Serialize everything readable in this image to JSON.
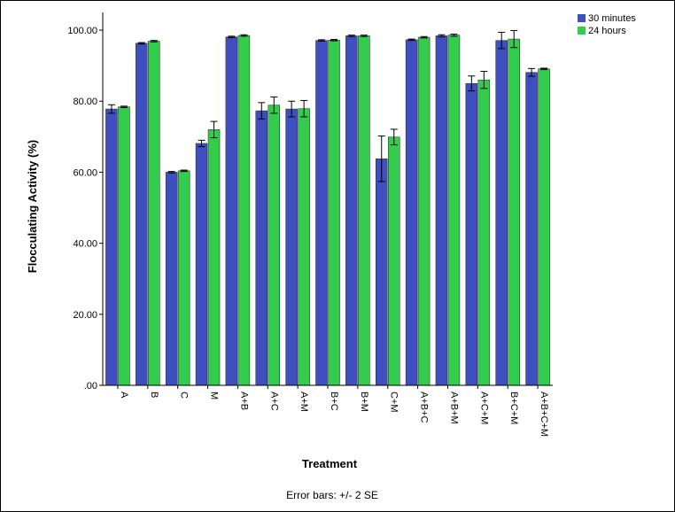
{
  "chart_data": {
    "type": "bar",
    "xlabel": "Treatment",
    "ylabel": "Flocculating Activity (%)",
    "ylim": [
      0,
      105
    ],
    "yticks": [
      0,
      20,
      40,
      60,
      80,
      100
    ],
    "ytick_labels": [
      ".00",
      "20.00",
      "40.00",
      "60.00",
      "80.00",
      "100.00"
    ],
    "categories": [
      "A",
      "B",
      "C",
      "M",
      "A+B",
      "A+C",
      "A+M",
      "B+C",
      "B+M",
      "C+M",
      "A+B+C",
      "A+B+M",
      "A+C+M",
      "B+C+M",
      "A+B+C+M"
    ],
    "series": [
      {
        "name": "30 minutes",
        "color": "#3f4fbf",
        "values": [
          77.8,
          96.3,
          60.0,
          68.1,
          98.1,
          77.3,
          77.8,
          97.1,
          98.4,
          63.8,
          97.3,
          98.4,
          85.0,
          97.1,
          88.1
        ],
        "errors": [
          1.2,
          0.2,
          0.2,
          0.9,
          0.2,
          2.3,
          2.2,
          0.2,
          0.2,
          6.4,
          0.2,
          0.3,
          2.1,
          2.3,
          1.1
        ]
      },
      {
        "name": "24 hours",
        "color": "#33cc4c",
        "values": [
          78.4,
          96.9,
          60.4,
          72.0,
          98.5,
          78.9,
          77.9,
          97.2,
          98.4,
          69.9,
          98.0,
          98.6,
          86.0,
          97.5,
          89.1
        ],
        "errors": [
          0.2,
          0.2,
          0.2,
          2.3,
          0.2,
          2.3,
          2.3,
          0.2,
          0.2,
          2.2,
          0.2,
          0.3,
          2.4,
          2.4,
          0.2
        ]
      }
    ],
    "legend_position": "top-right",
    "grid": false,
    "footnote": "Error bars: +/- 2 SE"
  }
}
